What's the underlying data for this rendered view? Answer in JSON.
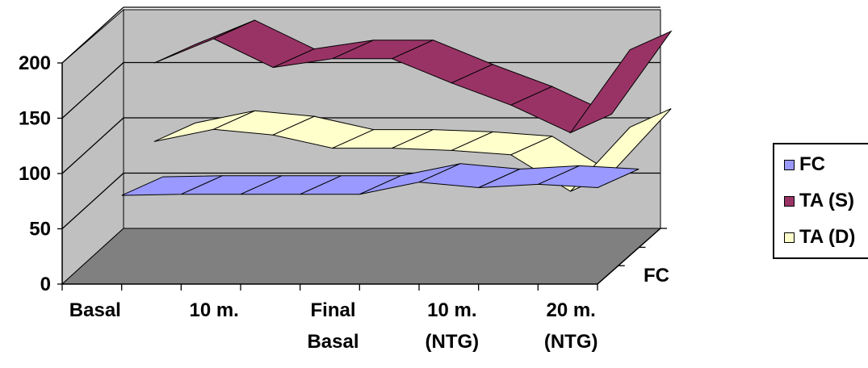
{
  "chart_data": {
    "type": "line",
    "style": "3d-ribbon",
    "categories": [
      "Basal",
      "",
      "10 m.",
      "",
      "Final Basal",
      "",
      "10 m. (NTG)",
      "",
      "20 m. (NTG)"
    ],
    "x_tick_labels": [
      {
        "lines": [
          "Basal"
        ]
      },
      {
        "lines": [
          "10 m."
        ]
      },
      {
        "lines": [
          "Final",
          "Basal"
        ]
      },
      {
        "lines": [
          "10 m.",
          "(NTG)"
        ]
      },
      {
        "lines": [
          "20 m.",
          "(NTG)"
        ]
      }
    ],
    "series": [
      {
        "name": "FC",
        "color": "#9999ff",
        "values": [
          70,
          71,
          71,
          71,
          71,
          82,
          77,
          80,
          77
        ]
      },
      {
        "name": "TA (S)",
        "color": "#993366",
        "values": [
          178,
          200,
          174,
          182,
          182,
          160,
          140,
          115,
          190
        ]
      },
      {
        "name": "TA (D)",
        "color": "#ffffcc",
        "values": [
          107,
          118,
          113,
          101,
          101,
          99,
          95,
          62,
          120
        ]
      }
    ],
    "y_ticks": [
      0,
      50,
      100,
      150,
      200
    ],
    "ylim": [
      0,
      200
    ],
    "depth_label": "FC",
    "legend_position": "right",
    "grid": true,
    "colors": {
      "back_wall": "#c0c0c0",
      "floor": "#808080",
      "gridline": "#000000"
    }
  }
}
